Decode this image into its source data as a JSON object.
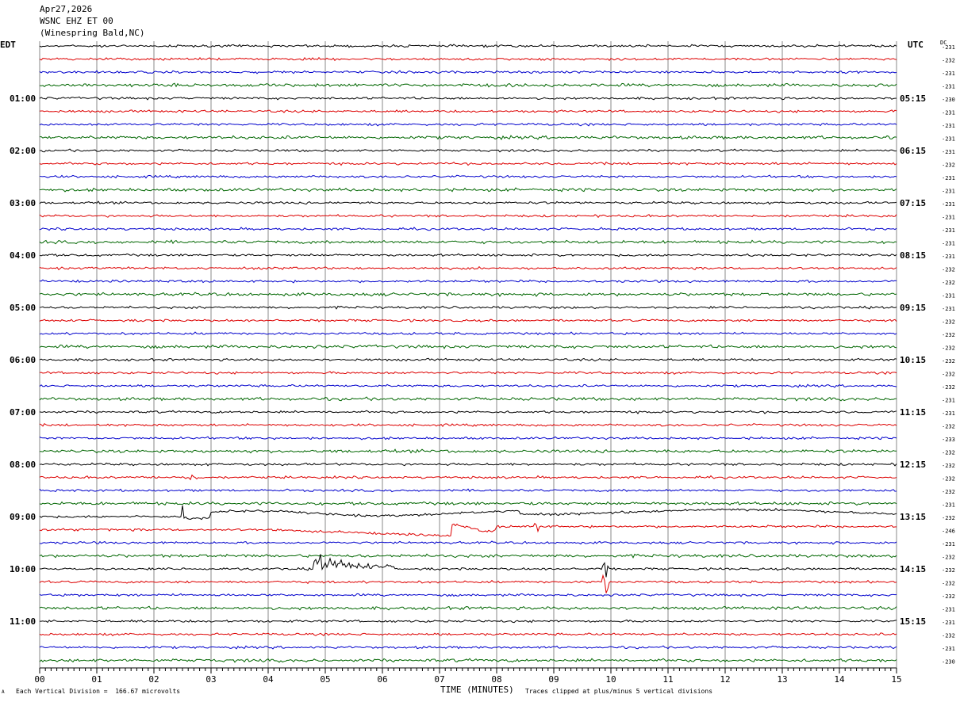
{
  "header": {
    "date": "Apr27,2026",
    "station": "WSNC EHZ ET 00",
    "location": "(Winespring Bald,NC)"
  },
  "left_axis_title": "EDT",
  "right_axis_title": "UTC",
  "dc_title": "DC",
  "footer": {
    "scale_note": "Each Vertical Division =  166.67 microvolts",
    "xlabel": "TIME (MINUTES)",
    "clip_note": "Traces clipped at plus/minus 5 vertical divisions",
    "corner_mark": "A"
  },
  "colors": {
    "trace_cycle": [
      "#000000",
      "#dd0000",
      "#0000cc",
      "#006600"
    ],
    "grid": "#888888",
    "background": "#ffffff"
  },
  "chart_data": {
    "type": "line",
    "title": "",
    "xlabel": "TIME (MINUTES)",
    "xlim": [
      0,
      15
    ],
    "x_ticks": [
      "00",
      "01",
      "02",
      "03",
      "04",
      "05",
      "06",
      "07",
      "08",
      "09",
      "10",
      "11",
      "12",
      "13",
      "14",
      "15"
    ],
    "rows": 48,
    "minutes_per_row": 15,
    "left_hour_labels": [
      {
        "row": 4,
        "label": "01:00"
      },
      {
        "row": 8,
        "label": "02:00"
      },
      {
        "row": 12,
        "label": "03:00"
      },
      {
        "row": 16,
        "label": "04:00"
      },
      {
        "row": 20,
        "label": "05:00"
      },
      {
        "row": 24,
        "label": "06:00"
      },
      {
        "row": 28,
        "label": "07:00"
      },
      {
        "row": 32,
        "label": "08:00"
      },
      {
        "row": 36,
        "label": "09:00"
      },
      {
        "row": 40,
        "label": "10:00"
      },
      {
        "row": 44,
        "label": "11:00"
      }
    ],
    "right_hour_labels": [
      {
        "row": 4,
        "label": "05:15"
      },
      {
        "row": 8,
        "label": "06:15"
      },
      {
        "row": 12,
        "label": "07:15"
      },
      {
        "row": 16,
        "label": "08:15"
      },
      {
        "row": 20,
        "label": "09:15"
      },
      {
        "row": 24,
        "label": "10:15"
      },
      {
        "row": 28,
        "label": "11:15"
      },
      {
        "row": 32,
        "label": "12:15"
      },
      {
        "row": 36,
        "label": "13:15"
      },
      {
        "row": 40,
        "label": "14:15"
      },
      {
        "row": 44,
        "label": "15:15"
      }
    ],
    "dc_offsets": [
      "-231",
      "-232",
      "-231",
      "-231",
      "-230",
      "-231",
      "-231",
      "-231",
      "-231",
      "-232",
      "-231",
      "-231",
      "-231",
      "-231",
      "-231",
      "-231",
      "-231",
      "-232",
      "-232",
      "-231",
      "-231",
      "-232",
      "-232",
      "-232",
      "-232",
      "-232",
      "-232",
      "-231",
      "-231",
      "-232",
      "-233",
      "-232",
      "-232",
      "-232",
      "-232",
      "-231",
      "-232",
      "-246",
      "-231",
      "-232",
      "-232",
      "-232",
      "-232",
      "-231",
      "-231",
      "-232",
      "-231",
      "-230"
    ],
    "events": [
      {
        "row": 33,
        "minute": 2.6,
        "kind": "burst"
      },
      {
        "row": 36,
        "minute": 2.5,
        "kind": "step-spike"
      },
      {
        "row": 37,
        "minute": 7.2,
        "kind": "step"
      },
      {
        "row": 37,
        "minute": 8.7,
        "kind": "spike"
      },
      {
        "row": 40,
        "minute": 4.8,
        "kind": "earthquake"
      },
      {
        "row": 40,
        "minute": 9.9,
        "kind": "spike"
      },
      {
        "row": 41,
        "minute": 9.9,
        "kind": "spike"
      }
    ]
  }
}
